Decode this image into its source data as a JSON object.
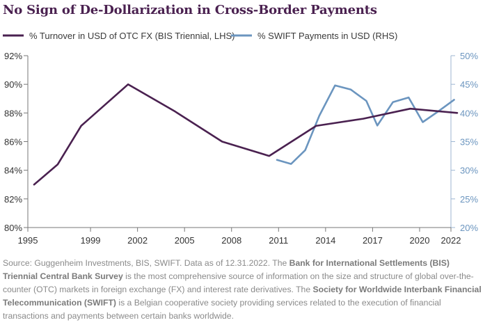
{
  "chart_data": {
    "type": "line",
    "title": "No Sign of De-Dollarization in Cross-Border Payments",
    "xlim": [
      1995,
      2022
    ],
    "x_ticks": [
      "1995",
      "1999",
      "2002",
      "2005",
      "2008",
      "2011",
      "2014",
      "2017",
      "2020",
      "2022"
    ],
    "left_axis": {
      "ylim": [
        80,
        92
      ],
      "tick_values": [
        80,
        82,
        84,
        86,
        88,
        90,
        92
      ],
      "tick_labels": [
        "80%",
        "82%",
        "84%",
        "86%",
        "88%",
        "90%",
        "92%"
      ],
      "color": "#333333"
    },
    "right_axis": {
      "ylim": [
        20,
        50
      ],
      "tick_values": [
        20,
        25,
        30,
        35,
        40,
        45,
        50
      ],
      "tick_labels": [
        "20%",
        "25%",
        "30%",
        "35%",
        "40%",
        "45%",
        "50%"
      ],
      "color": "#6b95bf"
    },
    "series": [
      {
        "name": "% Turnover in USD of OTC FX (BIS Triennial, LHS)",
        "axis": "left",
        "color": "#4a2150",
        "x": [
          1995.4,
          1996.9,
          1998.4,
          2001.4,
          2004.4,
          2007.4,
          2010.4,
          2013.4,
          2016.4,
          2019.4,
          2022.4
        ],
        "values": [
          83.0,
          84.4,
          87.1,
          90.0,
          88.1,
          86.0,
          85.0,
          87.1,
          87.6,
          88.3,
          88.0
        ]
      },
      {
        "name": "% SWIFT Payments in USD (RHS)",
        "axis": "right",
        "color": "#6b95bf",
        "x": [
          2010.9,
          2011.8,
          2012.7,
          2013.6,
          2014.6,
          2015.6,
          2016.6,
          2017.3,
          2018.3,
          2019.3,
          2020.2,
          2021.2,
          2022.2
        ],
        "values": [
          31.8,
          31.1,
          33.5,
          39.5,
          44.8,
          44.1,
          42.1,
          37.8,
          41.9,
          42.7,
          38.4,
          40.3,
          42.3
        ]
      }
    ]
  },
  "footnote": {
    "part1": "Source: Guggenheim Investments, BIS, SWIFT. Data as of 12.31.2022. The ",
    "bold1": "Bank for International Settlements (BIS) Triennial Central Bank Survey",
    "part2": " is the most comprehensive source of information on the size and structure of global over-the-counter (OTC) markets in foreign exchange (FX) and interest rate derivatives.  The ",
    "bold2": "Society for Worldwide Interbank Financial Telecommunication (SWIFT)",
    "part3": " is a Belgian cooperative society providing services related to the execution of financial transactions and payments between certain banks worldwide."
  }
}
